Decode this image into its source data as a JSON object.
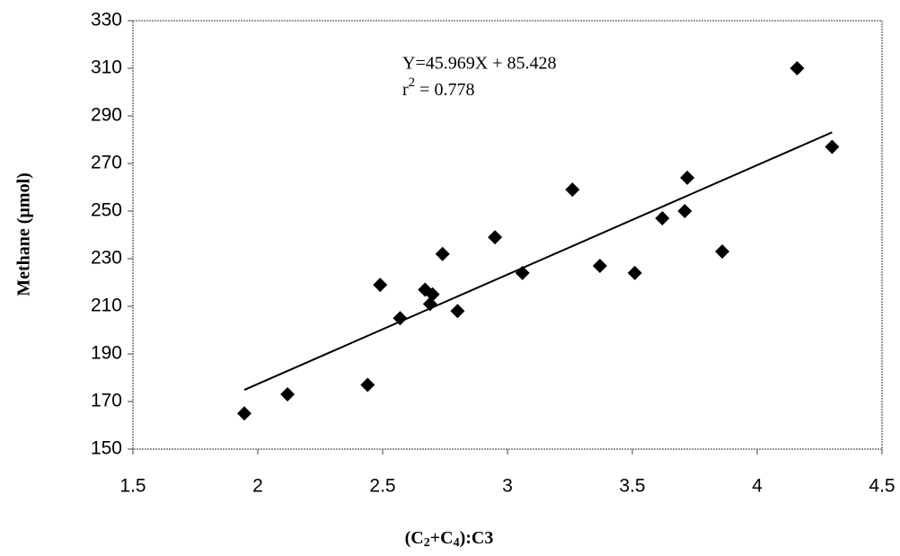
{
  "chart_data": {
    "type": "scatter",
    "x_label_parts": [
      "(C",
      "2",
      "+C",
      "4",
      "):C3"
    ],
    "y_label": "Methane (µmol)",
    "equation": "Y=45.969X + 85.428",
    "r2_parts": [
      "r",
      "2",
      " = 0.778"
    ],
    "trendline": {
      "slope": 45.969,
      "intercept": 85.428
    },
    "color": "#000000",
    "x": [
      1.946,
      2.119,
      2.44,
      2.49,
      2.57,
      2.67,
      2.69,
      2.7,
      2.8,
      2.74,
      2.95,
      3.06,
      3.26,
      3.37,
      3.51,
      3.62,
      3.71,
      3.72,
      3.86,
      4.16,
      4.3
    ],
    "values": [
      165,
      173,
      177,
      219,
      205,
      217,
      211,
      215,
      208,
      232,
      239,
      224,
      259,
      227,
      224,
      247,
      250,
      264,
      233,
      310,
      277
    ],
    "xlim": [
      1.5,
      4.5
    ],
    "xticks": [
      1.5,
      2,
      2.5,
      3,
      3.5,
      4,
      4.5
    ],
    "ylim": [
      150,
      330
    ],
    "yticks": [
      150,
      170,
      190,
      210,
      230,
      250,
      270,
      290,
      310,
      330
    ]
  }
}
